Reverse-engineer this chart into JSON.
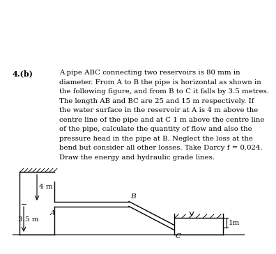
{
  "title_label": "4.(b)",
  "paragraph_lines": [
    "A pipe ABC connecting two reservoirs is 80 mm in",
    "diameter. From A to B the pipe is horizontal as shown in",
    "the following figure, and from B to C it falls by 3.5 metres.",
    "The length AB and BC are 25 and 15 m respectively. If",
    "the water surface in the reservoir at A is 4 m above the",
    "centre line of the pipe and at C 1 m above the centre line",
    "of the pipe, calculate the quantity of flow and also the",
    "pressure head in the pipe at B. Neglect the loss at the",
    "bend but consider all other losses. Take Darcy f = 0.024.",
    "Draw the energy and hydraulic grade lines."
  ],
  "background_color": "#ffffff",
  "text_color": "#000000",
  "label_A": "A",
  "label_B": "B",
  "label_C": "C",
  "label_4m": "4 m",
  "label_35m": "3.5 m",
  "label_1m": "1m"
}
